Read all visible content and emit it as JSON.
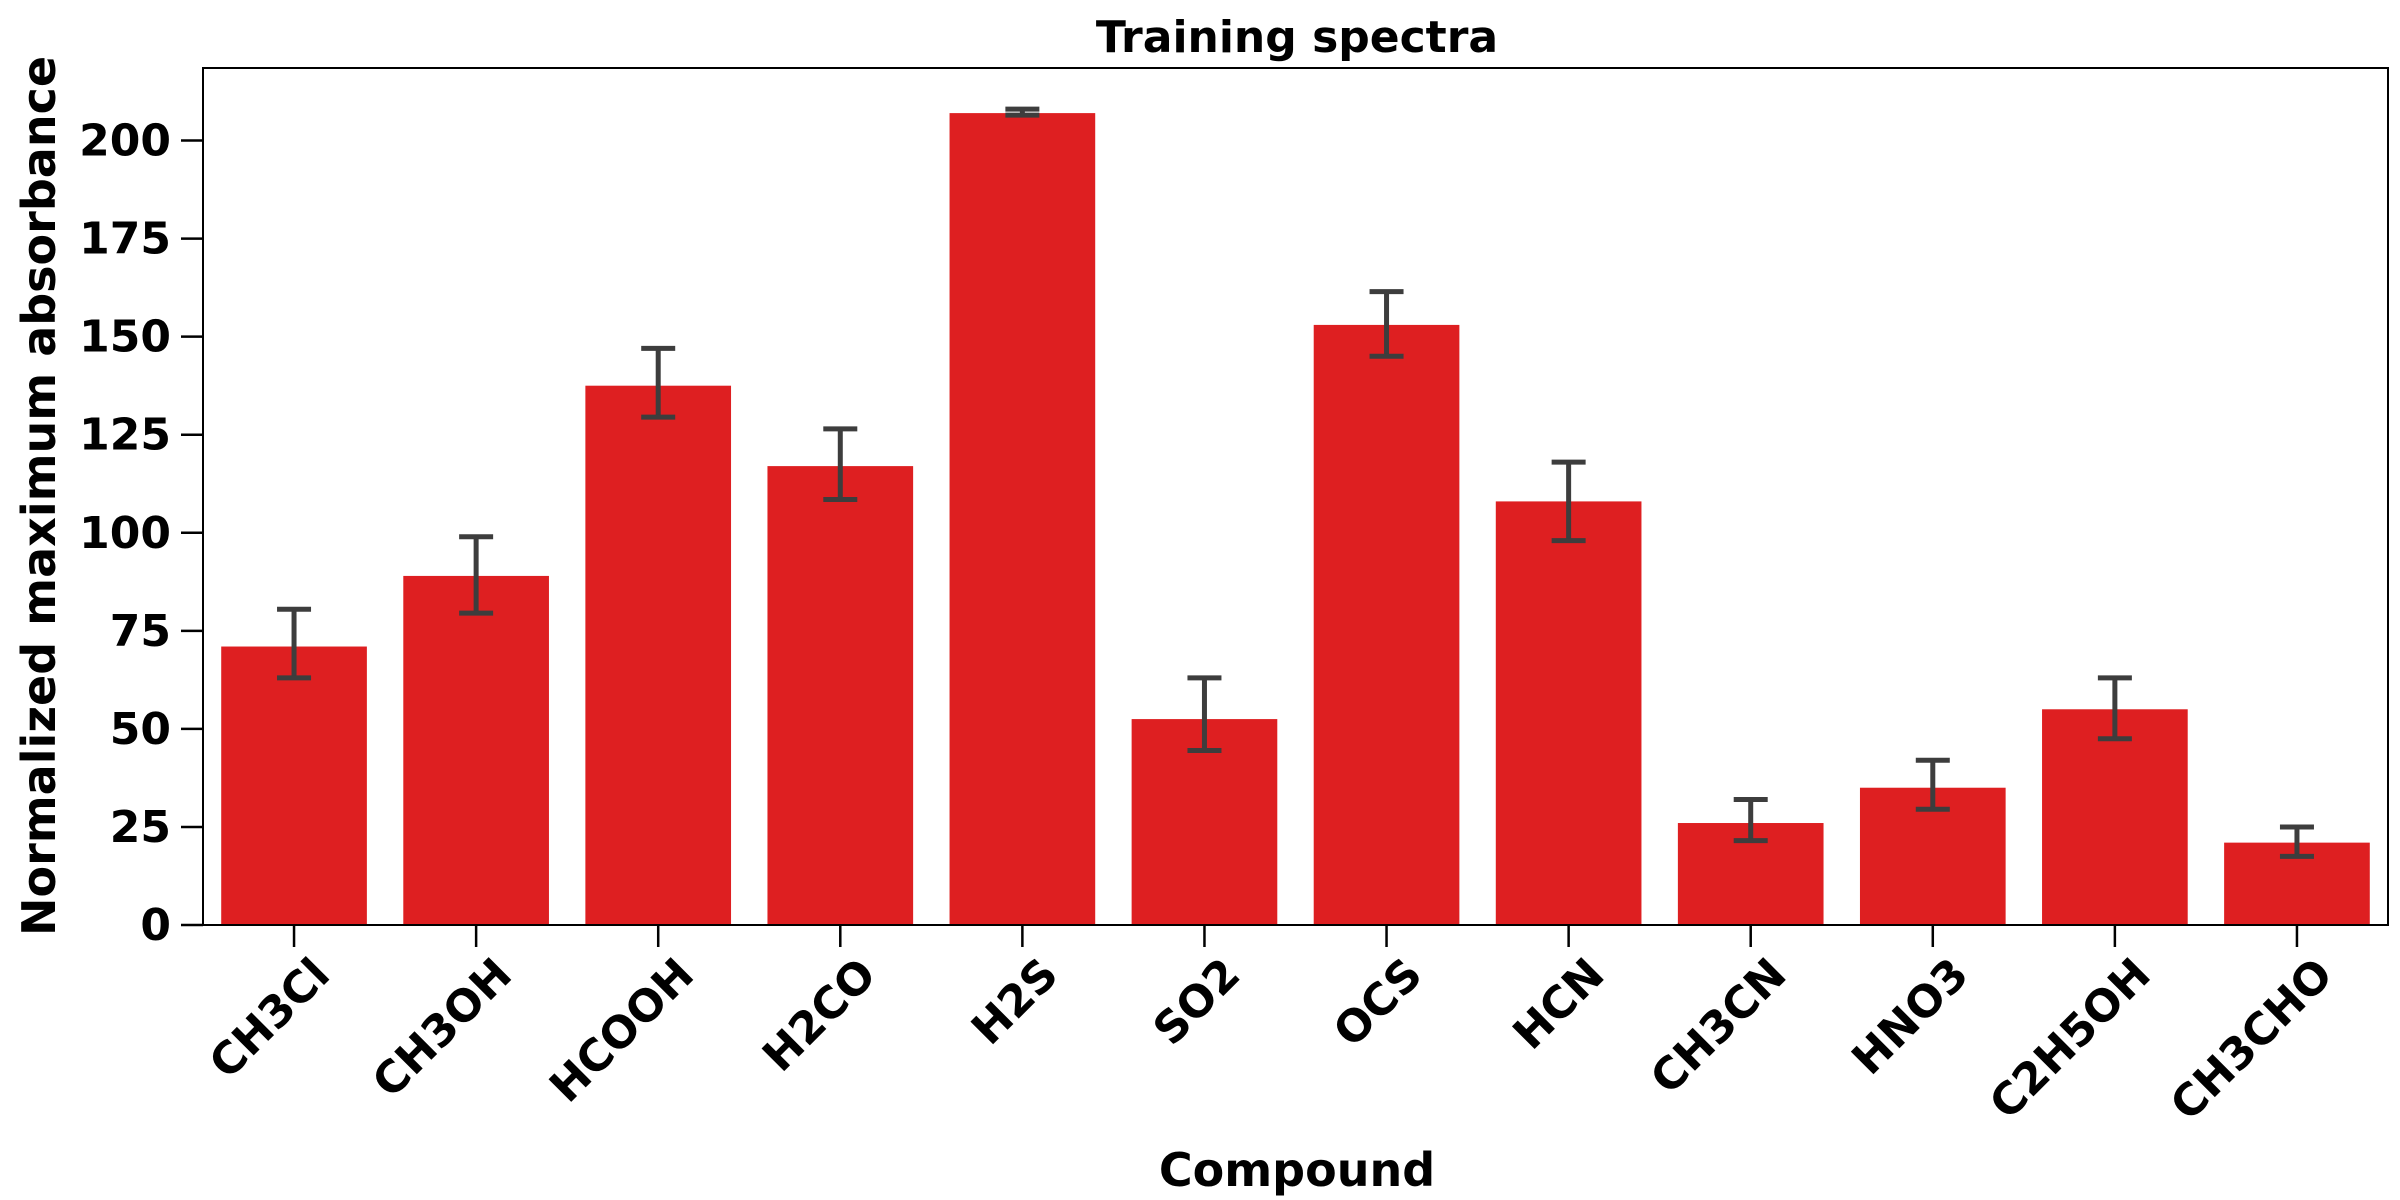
{
  "chart_data": {
    "type": "bar",
    "title": "Training spectra",
    "xlabel": "Compound",
    "ylabel": "Normalized maximum absorbance",
    "categories": [
      "CH3Cl",
      "CH3OH",
      "HCOOH",
      "H2CO",
      "H2S",
      "SO2",
      "OCS",
      "HCN",
      "CH3CN",
      "HNO3",
      "C2H5OH",
      "CH3CHO"
    ],
    "values": [
      71,
      89,
      137.5,
      117,
      207,
      52.5,
      153,
      108,
      26,
      35,
      55,
      21
    ],
    "error_low": [
      63,
      79.5,
      129.5,
      108.5,
      206.5,
      44.5,
      145,
      98,
      21.5,
      29.5,
      47.5,
      17.5
    ],
    "error_high": [
      80.5,
      99,
      147,
      126.5,
      208,
      63,
      161.5,
      118,
      32,
      42,
      63,
      25
    ],
    "ylim": [
      0,
      218.5
    ],
    "yticks": [
      0,
      25,
      50,
      75,
      100,
      125,
      150,
      175,
      200
    ],
    "grid": false,
    "bar_color": "#de1f21",
    "error_color": "#3d3d3d"
  }
}
